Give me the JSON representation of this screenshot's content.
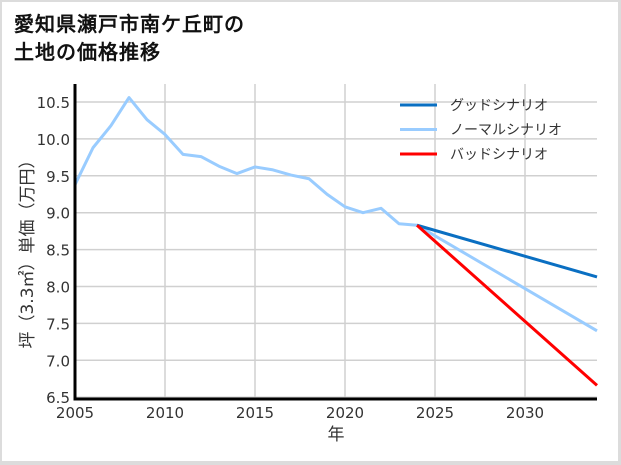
{
  "title_line1": "愛知県瀬戸市南ケ丘町の",
  "title_line2": "土地の価格推移",
  "chart_data": {
    "type": "line",
    "title": "愛知県瀬戸市南ケ丘町の土地の価格推移",
    "xlabel": "年",
    "ylabel": "坪（3.3㎡）単価（万円）",
    "xlim": [
      2005,
      2034
    ],
    "ylim": [
      6.5,
      10.75
    ],
    "xticks": [
      2005,
      2010,
      2015,
      2020,
      2025,
      2030
    ],
    "yticks": [
      6.5,
      7.0,
      7.5,
      8.0,
      8.5,
      9.0,
      9.5,
      10.0,
      10.5
    ],
    "grid": true,
    "legend_position": "upper right",
    "series": [
      {
        "name": "グッドシナリオ",
        "color": "#0a6fc2",
        "x": [
          2024,
          2034
        ],
        "values": [
          8.83,
          8.13
        ]
      },
      {
        "name": "ノーマルシナリオ",
        "color": "#99ccff",
        "x": [
          2005,
          2006,
          2007,
          2008,
          2009,
          2010,
          2011,
          2012,
          2013,
          2014,
          2015,
          2016,
          2017,
          2018,
          2019,
          2020,
          2021,
          2022,
          2023,
          2024,
          2034
        ],
        "values": [
          9.38,
          9.88,
          10.18,
          10.56,
          10.26,
          10.06,
          9.79,
          9.76,
          9.63,
          9.53,
          9.62,
          9.58,
          9.51,
          9.46,
          9.25,
          9.08,
          9.0,
          9.06,
          8.85,
          8.83,
          7.4
        ]
      },
      {
        "name": "バッドシナリオ",
        "color": "#ff0000",
        "x": [
          2024,
          2034
        ],
        "values": [
          8.83,
          6.66
        ]
      }
    ]
  }
}
